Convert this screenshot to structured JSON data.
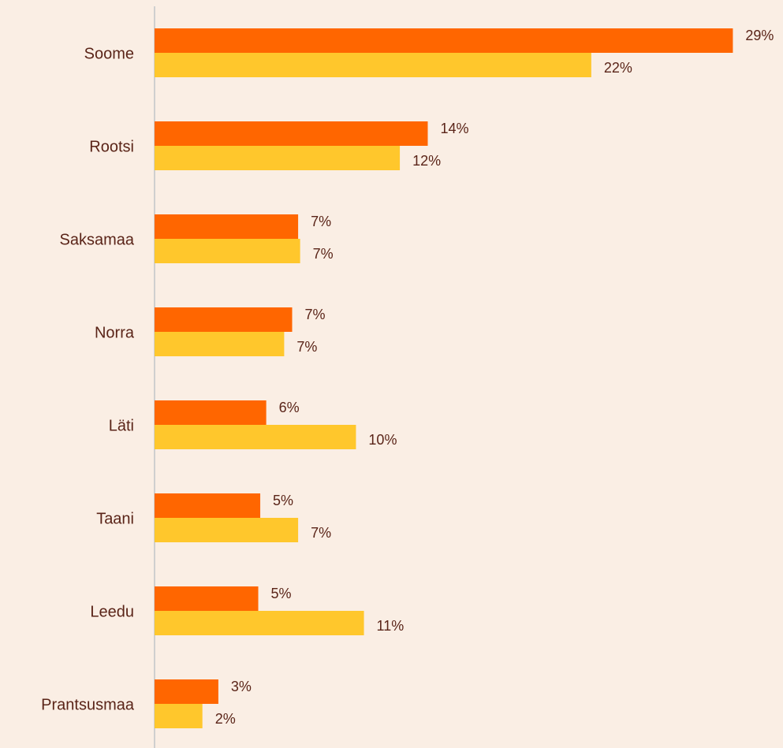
{
  "chart_data": {
    "type": "hbar",
    "categories": [
      "Soome",
      "Rootsi",
      "Saksamaa",
      "Norra",
      "Läti",
      "Taani",
      "Leedu",
      "Prantsusmaa"
    ],
    "series": [
      {
        "color": "#ff6600",
        "values": [
          29.0,
          13.7,
          7.2,
          6.9,
          5.6,
          5.3,
          5.2,
          3.2
        ],
        "value_labels": [
          "29%",
          "14%",
          "7%",
          "7%",
          "6%",
          "5%",
          "5%",
          "3%"
        ]
      },
      {
        "color": "#ffc72c",
        "values": [
          21.9,
          12.3,
          7.3,
          6.5,
          10.1,
          7.2,
          10.5,
          2.4
        ],
        "value_labels": [
          "22%",
          "12%",
          "7%",
          "7%",
          "10%",
          "7%",
          "11%",
          "2%"
        ]
      }
    ],
    "xlim": [
      0,
      31
    ]
  }
}
